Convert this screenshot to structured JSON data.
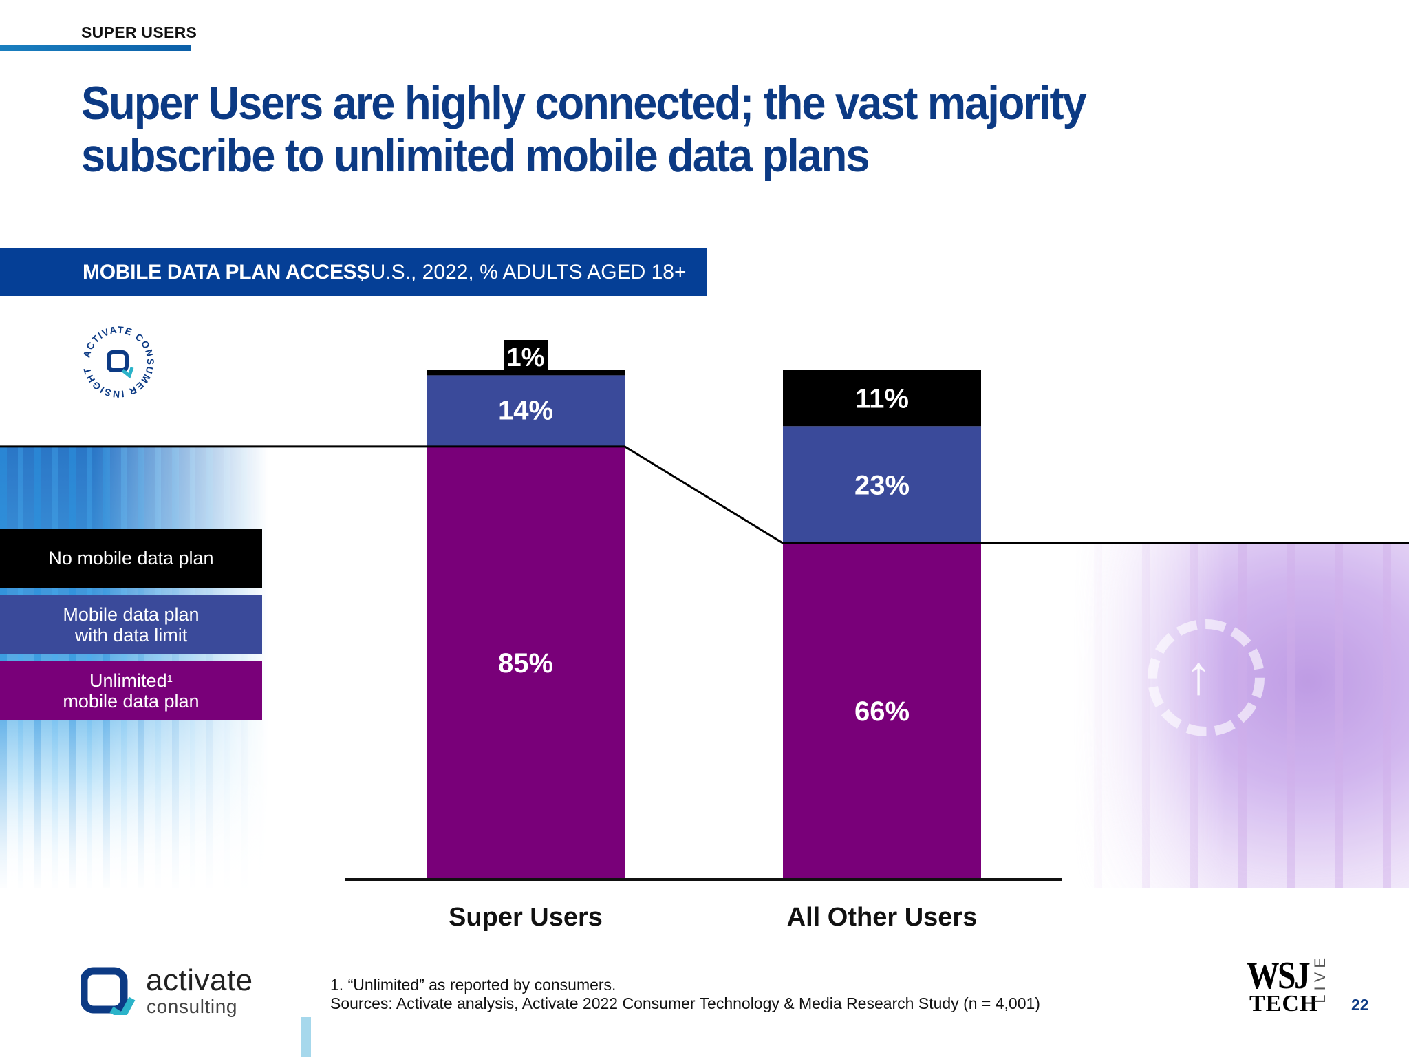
{
  "header": {
    "section_label": "SUPER USERS",
    "headline": "Super Users are highly connected; the vast majority subscribe to unlimited mobile data plans"
  },
  "chart_banner": {
    "title_strong": "MOBILE DATA PLAN ACCESS",
    "title_rest": ", U.S., 2022, % ADULTS AGED 18+"
  },
  "seal_text": "ACTIVATE CONSUMER INSIGHT",
  "legend": {
    "no_plan": "No mobile data plan",
    "limit_line1": "Mobile data plan",
    "limit_line2": "with data limit",
    "unlimited_line1": "Unlimited",
    "unlimited_sup": "1",
    "unlimited_line2": "mobile data plan"
  },
  "chart_data": {
    "type": "bar",
    "stacked": true,
    "categories": [
      "Super Users",
      "All Other Users"
    ],
    "series": [
      {
        "name": "Unlimited1 mobile data plan",
        "values": [
          85,
          66
        ],
        "color": "#790079"
      },
      {
        "name": "Mobile data plan with data limit",
        "values": [
          14,
          23
        ],
        "color": "#3a4a9a"
      },
      {
        "name": "No mobile data plan",
        "values": [
          1,
          11
        ],
        "color": "#000000"
      }
    ],
    "data_labels": [
      [
        "85%",
        "14%",
        "1%"
      ],
      [
        "66%",
        "23%",
        "11%"
      ]
    ],
    "ylim": [
      0,
      100
    ],
    "legend_position": "left",
    "reference_line": "connects top of Unlimited segment across bars"
  },
  "footer": {
    "logo_word1": "activate",
    "logo_word2": "consulting",
    "footnote_line1": "1. “Unlimited” as reported by consumers.",
    "footnote_line2": "Sources: Activate analysis, Activate 2022 Consumer Technology & Media Research Study (n = 4,001)",
    "wsj_main": "WSJ",
    "wsj_tech": "TECH",
    "wsj_live": "LIVE",
    "page_number": "22"
  },
  "colors": {
    "headline": "#0c3a84",
    "banner": "#053f96",
    "unlimited": "#790079",
    "limit": "#3a4a9a",
    "none": "#000000"
  }
}
